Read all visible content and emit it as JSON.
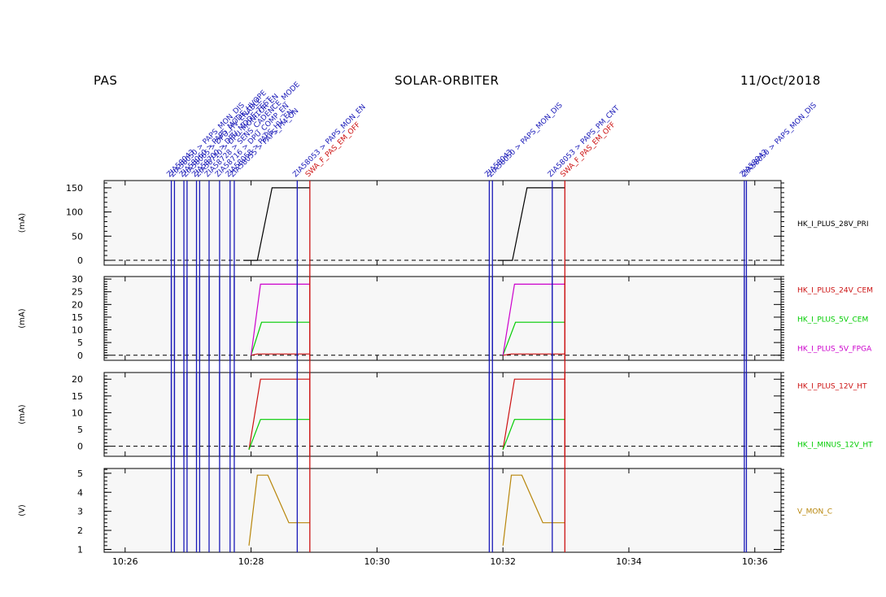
{
  "header": {
    "instrument": "PAS",
    "mission": "SOLAR-ORBITER",
    "date": "11/Oct/2018"
  },
  "colors": {
    "background": "#ffffff",
    "panel_bg": "#f7f7f7",
    "event_blue": "#1a1ab8",
    "event_red": "#cc1111"
  },
  "chart_data": {
    "type": "line",
    "x_unit": "time (HH:MM)",
    "xlim": [
      "10:25:40",
      "10:36:25"
    ],
    "x_ticks": [
      "10:26",
      "10:28",
      "10:30",
      "10:32",
      "10:34",
      "10:36"
    ],
    "event_markers": [
      {
        "time": "10:26:44",
        "labels": [
          "ZIA58043"
        ],
        "color": "#1a1ab8"
      },
      {
        "time": "10:26:47",
        "labels": [
          "ZIA58050 > PAPS_MON_DIS"
        ],
        "color": "#1a1ab8"
      },
      {
        "time": "10:26:56",
        "labels": [
          "ZIA58060 > PAPS_MODE_HVOPE"
        ],
        "color": "#1a1ab8"
      },
      {
        "time": "10:26:59",
        "labels": [
          "ZIA58065 > DPU_HV_ENABLE"
        ],
        "color": "#1a1ab8"
      },
      {
        "time": "10:27:08",
        "labels": [
          "ZIA58700 > DPU_MODE_TEST"
        ],
        "color": "#1a1ab8"
      },
      {
        "time": "10:27:11",
        "labels": [
          "ZIA58710 > DPU_MONITOR_EN"
        ],
        "color": "#1a1ab8"
      },
      {
        "time": "10:27:20",
        "labels": [
          "ZIA58728 > SENS_CADENCE_MODE"
        ],
        "color": "#1a1ab8"
      },
      {
        "time": "10:27:30",
        "labels": [
          "ZIA58716 > DPU_COMP_EN"
        ],
        "color": "#1a1ab8"
      },
      {
        "time": "10:27:40",
        "labels": [
          "ZIA58058 > PAPS_HV_EN"
        ],
        "color": "#1a1ab8"
      },
      {
        "time": "10:27:44",
        "labels": [
          "ZIA58055 > PAPS_PM_ON"
        ],
        "color": "#1a1ab8"
      },
      {
        "time": "10:28:44",
        "labels": [
          "ZIA58053 > PAPS_MON_EN"
        ],
        "color": "#1a1ab8"
      },
      {
        "time": "10:28:56",
        "labels": [
          "SWA_F_PAS_EM_OFF"
        ],
        "color": "#cc1111"
      },
      {
        "time": "10:31:47",
        "labels": [
          "ZIA58043"
        ],
        "color": "#1a1ab8"
      },
      {
        "time": "10:31:50",
        "labels": [
          "ZIA58050 > PAPS_MON_DIS"
        ],
        "color": "#1a1ab8"
      },
      {
        "time": "10:32:47",
        "labels": [
          "ZIA58053 > PAPS_PM_CNT"
        ],
        "color": "#1a1ab8"
      },
      {
        "time": "10:32:59",
        "labels": [
          "SWA_F_PAS_EM_OFF"
        ],
        "color": "#cc1111"
      },
      {
        "time": "10:35:50",
        "labels": [
          "ZIA58043"
        ],
        "color": "#1a1ab8"
      },
      {
        "time": "10:35:52",
        "labels": [
          "ZIA58050 > PAPS_MON_DIS"
        ],
        "color": "#1a1ab8"
      }
    ],
    "panels": [
      {
        "ylabel": "(mA)",
        "ylim": [
          -10,
          165
        ],
        "y_ticks": [
          0,
          50,
          100,
          150
        ],
        "zero_line": true,
        "series": [
          {
            "name": "HK_I_PLUS_28V_PRI",
            "color": "#000000",
            "t": [
              "10:27:53",
              "10:28:06",
              "10:28:20",
              "10:28:56"
            ],
            "y": [
              0,
              0,
              150,
              150
            ]
          },
          {
            "name": "",
            "color": "#000000",
            "t": [
              "10:31:55",
              "10:32:09",
              "10:32:23",
              "10:32:59"
            ],
            "y": [
              0,
              0,
              150,
              150
            ]
          }
        ]
      },
      {
        "ylabel": "(mA)",
        "ylim": [
          -2,
          31
        ],
        "y_ticks": [
          0,
          5,
          10,
          15,
          20,
          25,
          30
        ],
        "zero_line": true,
        "series": [
          {
            "name": "HK_I_PLUS_24V_CEM",
            "color": "#cc1111",
            "t": [
              "10:28:00",
              "10:28:06",
              "10:28:56"
            ],
            "y": [
              0,
              0.5,
              0.5
            ]
          },
          {
            "name": "HK_I_PLUS_5V_CEM",
            "color": "#00cc00",
            "t": [
              "10:28:00",
              "10:28:10",
              "10:28:56"
            ],
            "y": [
              0,
              13,
              13
            ]
          },
          {
            "name": "HK_I_PLUS_5V_FPGA",
            "color": "#cc00cc",
            "t": [
              "10:28:00",
              "10:28:09",
              "10:28:56"
            ],
            "y": [
              0,
              28,
              28
            ]
          },
          {
            "name": "",
            "color": "#cc1111",
            "t": [
              "10:32:00",
              "10:32:08",
              "10:32:59"
            ],
            "y": [
              0,
              0.5,
              0.5
            ]
          },
          {
            "name": "",
            "color": "#00cc00",
            "t": [
              "10:32:00",
              "10:32:12",
              "10:32:59"
            ],
            "y": [
              0,
              13,
              13
            ]
          },
          {
            "name": "",
            "color": "#cc00cc",
            "t": [
              "10:32:00",
              "10:32:11",
              "10:32:59"
            ],
            "y": [
              0,
              28,
              28
            ]
          }
        ]
      },
      {
        "ylabel": "(mA)",
        "ylim": [
          -3,
          22
        ],
        "y_ticks": [
          0,
          5,
          10,
          15,
          20
        ],
        "zero_line": true,
        "series": [
          {
            "name": "HK_I_PLUS_12V_HT",
            "color": "#cc1111",
            "t": [
              "10:27:58",
              "10:28:09",
              "10:28:56"
            ],
            "y": [
              -1,
              20,
              20
            ]
          },
          {
            "name": "HK_I_MINUS_12V_HT",
            "color": "#00cc00",
            "t": [
              "10:27:58",
              "10:28:09",
              "10:28:56"
            ],
            "y": [
              -1,
              8,
              8
            ]
          },
          {
            "name": "",
            "color": "#cc1111",
            "t": [
              "10:32:00",
              "10:32:11",
              "10:32:59"
            ],
            "y": [
              -1,
              20,
              20
            ]
          },
          {
            "name": "",
            "color": "#00cc00",
            "t": [
              "10:32:00",
              "10:32:11",
              "10:32:59"
            ],
            "y": [
              -1,
              8,
              8
            ]
          }
        ]
      },
      {
        "ylabel": "(V)",
        "ylim": [
          0.85,
          5.25
        ],
        "y_ticks": [
          1,
          2,
          3,
          4,
          5
        ],
        "zero_line": false,
        "series": [
          {
            "name": "V_MON_C",
            "color": "#b8860b",
            "t": [
              "10:27:58",
              "10:28:06",
              "10:28:16",
              "10:28:36",
              "10:28:56"
            ],
            "y": [
              1.2,
              4.9,
              4.9,
              2.4,
              2.4
            ]
          },
          {
            "name": "",
            "color": "#b8860b",
            "t": [
              "10:32:00",
              "10:32:08",
              "10:32:18",
              "10:32:38",
              "10:32:59"
            ],
            "y": [
              1.2,
              4.9,
              4.9,
              2.4,
              2.4
            ]
          }
        ]
      }
    ]
  }
}
